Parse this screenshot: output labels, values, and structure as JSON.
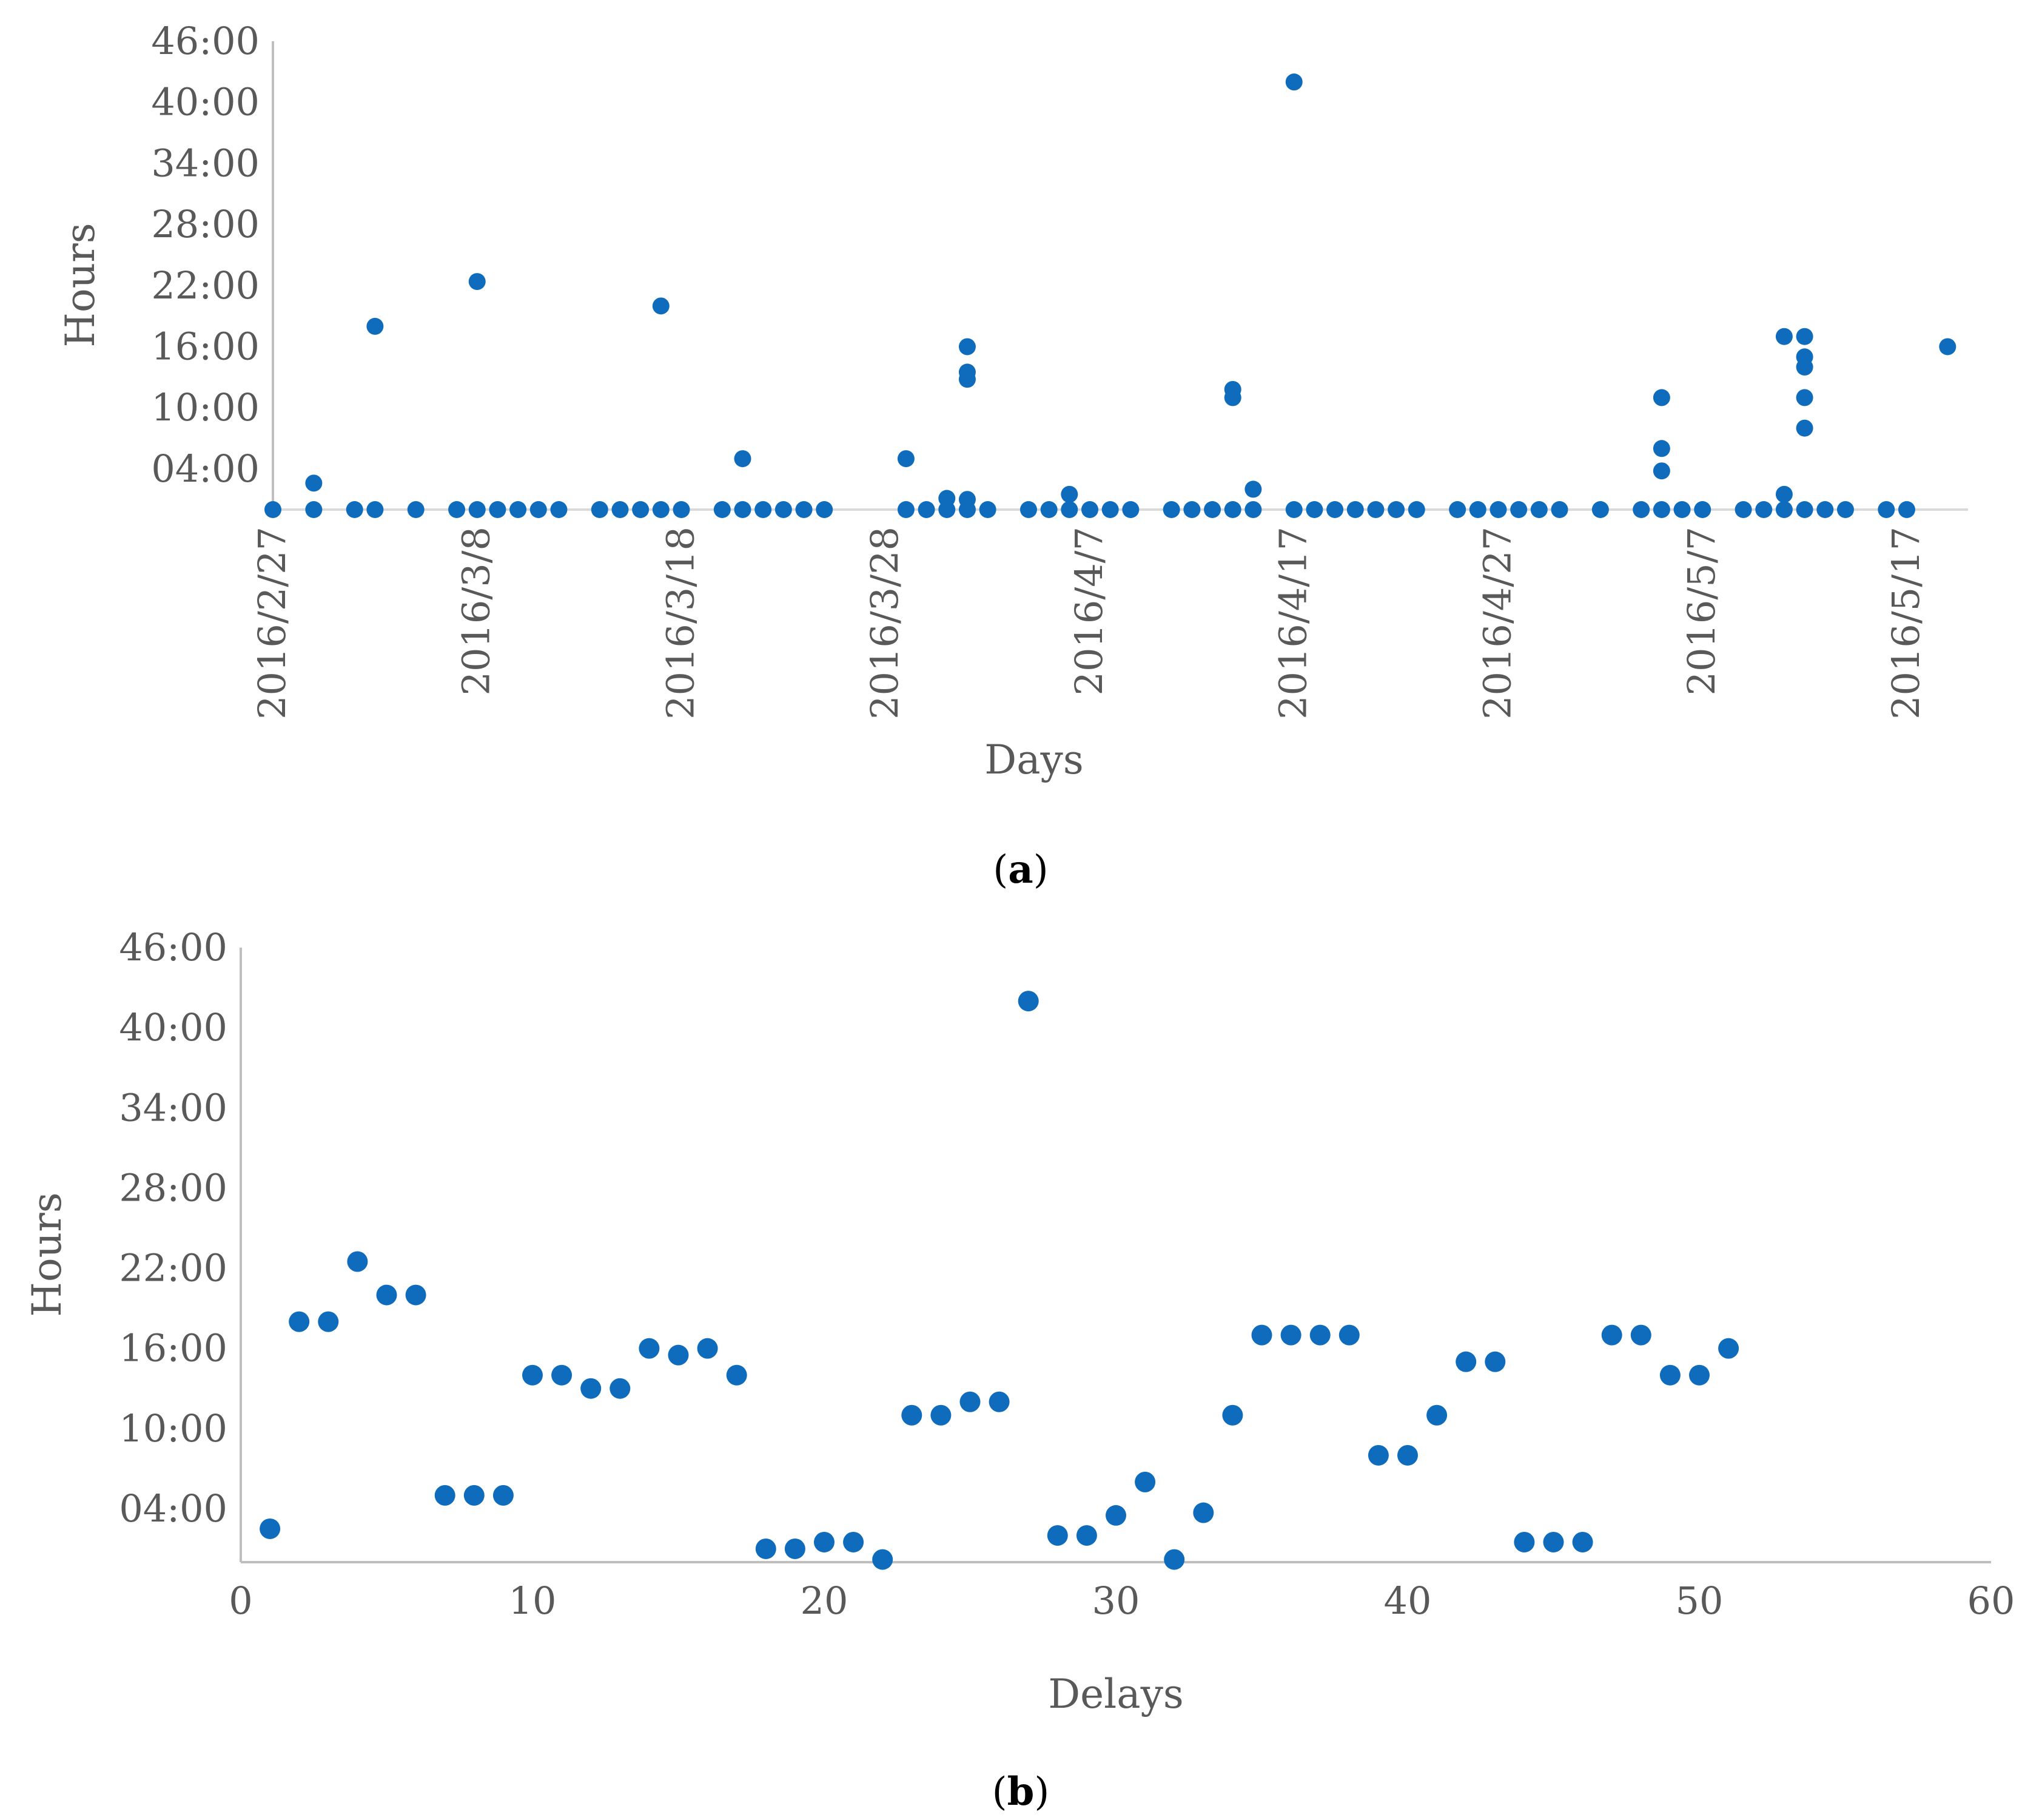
{
  "colors": {
    "marker": "#0F6CBD",
    "axis": "#BFBFBF",
    "zero_line": "#D9D9D9",
    "text": "#595959"
  },
  "chart_data": [
    {
      "id": "a",
      "panel_label": "a",
      "type": "scatter",
      "xlabel": "Days",
      "ylabel": "Hours",
      "x_axis_type": "date",
      "x_start": "2016/2/27",
      "x_end": "2016/5/20",
      "x_tick_labels": [
        "2016/2/27",
        "2016/3/8",
        "2016/3/18",
        "2016/3/28",
        "2016/4/7",
        "2016/4/17",
        "2016/4/27",
        "2016/5/7",
        "2016/5/17"
      ],
      "y_tick_labels": [
        "04:00",
        "10:00",
        "16:00",
        "22:00",
        "28:00",
        "34:00",
        "40:00",
        "46:00"
      ],
      "ylim_hours": [
        0,
        46
      ],
      "grid": false,
      "note": "x = days since 2016/2/27, y = delay in hours",
      "points": [
        [
          0,
          0
        ],
        [
          2,
          0
        ],
        [
          2,
          2.6
        ],
        [
          4,
          0
        ],
        [
          5,
          0
        ],
        [
          5,
          18
        ],
        [
          7,
          0
        ],
        [
          9,
          0
        ],
        [
          10,
          0
        ],
        [
          10,
          22.4
        ],
        [
          11,
          0
        ],
        [
          12,
          0
        ],
        [
          13,
          0
        ],
        [
          14,
          0
        ],
        [
          16,
          0
        ],
        [
          17,
          0
        ],
        [
          18,
          0
        ],
        [
          19,
          0
        ],
        [
          19,
          20
        ],
        [
          20,
          0
        ],
        [
          22,
          0
        ],
        [
          23,
          0
        ],
        [
          23,
          5
        ],
        [
          24,
          0
        ],
        [
          25,
          0
        ],
        [
          26,
          0
        ],
        [
          27,
          0
        ],
        [
          31,
          0
        ],
        [
          31,
          5
        ],
        [
          32,
          0
        ],
        [
          33,
          0
        ],
        [
          33,
          1.1
        ],
        [
          34,
          0
        ],
        [
          34,
          1
        ],
        [
          34,
          12.8
        ],
        [
          34,
          13.5
        ],
        [
          34,
          16
        ],
        [
          35,
          0
        ],
        [
          37,
          0
        ],
        [
          38,
          0
        ],
        [
          39,
          0
        ],
        [
          39,
          1.5
        ],
        [
          40,
          0
        ],
        [
          41,
          0
        ],
        [
          42,
          0
        ],
        [
          44,
          0
        ],
        [
          45,
          0
        ],
        [
          46,
          0
        ],
        [
          47,
          0
        ],
        [
          47,
          11
        ],
        [
          47,
          11.8
        ],
        [
          48,
          0
        ],
        [
          48,
          2
        ],
        [
          50,
          0
        ],
        [
          50,
          42
        ],
        [
          51,
          0
        ],
        [
          52,
          0
        ],
        [
          53,
          0
        ],
        [
          54,
          0
        ],
        [
          55,
          0
        ],
        [
          56,
          0
        ],
        [
          58,
          0
        ],
        [
          59,
          0
        ],
        [
          60,
          0
        ],
        [
          61,
          0
        ],
        [
          62,
          0
        ],
        [
          63,
          0
        ],
        [
          65,
          0
        ],
        [
          67,
          0
        ],
        [
          68,
          0
        ],
        [
          68,
          3.8
        ],
        [
          68,
          6
        ],
        [
          68,
          11
        ],
        [
          69,
          0
        ],
        [
          70,
          0
        ],
        [
          72,
          0
        ],
        [
          73,
          0
        ],
        [
          74,
          0
        ],
        [
          74,
          1.5
        ],
        [
          74,
          17
        ],
        [
          75,
          0
        ],
        [
          75,
          8
        ],
        [
          75,
          11
        ],
        [
          75,
          14
        ],
        [
          75,
          15
        ],
        [
          75,
          17
        ],
        [
          76,
          0
        ],
        [
          77,
          0
        ],
        [
          79,
          0
        ],
        [
          80,
          0
        ],
        [
          82,
          16
        ]
      ]
    },
    {
      "id": "b",
      "panel_label": "b",
      "type": "scatter",
      "xlabel": "Delays",
      "ylabel": "Hours",
      "x_tick_labels": [
        "0",
        "10",
        "20",
        "30",
        "40",
        "50",
        "60"
      ],
      "x_ticks": [
        0,
        10,
        20,
        30,
        40,
        50,
        60
      ],
      "xlim": [
        0,
        60
      ],
      "y_tick_labels": [
        "04:00",
        "10:00",
        "16:00",
        "22:00",
        "28:00",
        "34:00",
        "40:00",
        "46:00"
      ],
      "ylim_hours": [
        0,
        46
      ],
      "grid": false,
      "points": [
        [
          1,
          2.5
        ],
        [
          2,
          18
        ],
        [
          3,
          18
        ],
        [
          4,
          22.5
        ],
        [
          5,
          20
        ],
        [
          6,
          20
        ],
        [
          7,
          5
        ],
        [
          8,
          5
        ],
        [
          9,
          5
        ],
        [
          10,
          14
        ],
        [
          11,
          14
        ],
        [
          12,
          13
        ],
        [
          13,
          13
        ],
        [
          14,
          16
        ],
        [
          15,
          15.5
        ],
        [
          16,
          16
        ],
        [
          17,
          14
        ],
        [
          18,
          1
        ],
        [
          19,
          1
        ],
        [
          20,
          1.5
        ],
        [
          21,
          1.5
        ],
        [
          22,
          0.2
        ],
        [
          23,
          11
        ],
        [
          24,
          11
        ],
        [
          25,
          12
        ],
        [
          26,
          12
        ],
        [
          27,
          42
        ],
        [
          28,
          2
        ],
        [
          29,
          2
        ],
        [
          30,
          3.5
        ],
        [
          31,
          6
        ],
        [
          32,
          0.2
        ],
        [
          33,
          3.7
        ],
        [
          34,
          11
        ],
        [
          35,
          17
        ],
        [
          36,
          17
        ],
        [
          37,
          17
        ],
        [
          38,
          17
        ],
        [
          39,
          8
        ],
        [
          40,
          8
        ],
        [
          41,
          11
        ],
        [
          42,
          15
        ],
        [
          43,
          15
        ],
        [
          44,
          1.5
        ],
        [
          45,
          1.5
        ],
        [
          46,
          1.5
        ],
        [
          47,
          17
        ],
        [
          48,
          17
        ],
        [
          49,
          14
        ],
        [
          50,
          14
        ],
        [
          51,
          16
        ]
      ]
    }
  ]
}
